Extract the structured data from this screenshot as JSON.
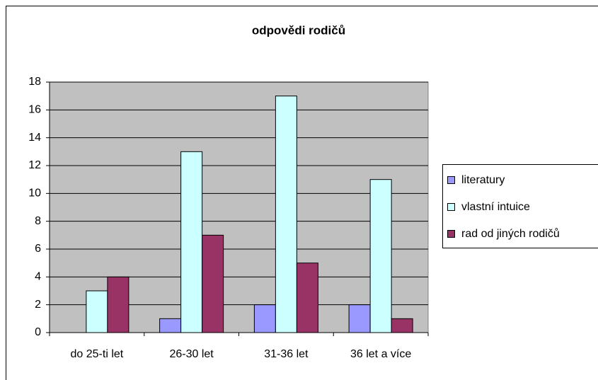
{
  "chart_data": {
    "type": "bar",
    "title": "odpovědi rodičů",
    "categories": [
      "do 25-ti let",
      "26-30 let",
      "31-36 let",
      "36 let a více"
    ],
    "series": [
      {
        "name": "literatury",
        "color": "#9999ff",
        "values": [
          0,
          1,
          2,
          2
        ]
      },
      {
        "name": "vlastní intuice",
        "color": "#ccffff",
        "values": [
          3,
          13,
          17,
          11
        ]
      },
      {
        "name": "rad od jiných rodičů",
        "color": "#993366",
        "values": [
          4,
          7,
          5,
          1
        ]
      }
    ],
    "ylim": [
      0,
      18
    ],
    "yticks": [
      0,
      2,
      4,
      6,
      8,
      10,
      12,
      14,
      16,
      18
    ],
    "grid": true,
    "legend": "right"
  }
}
